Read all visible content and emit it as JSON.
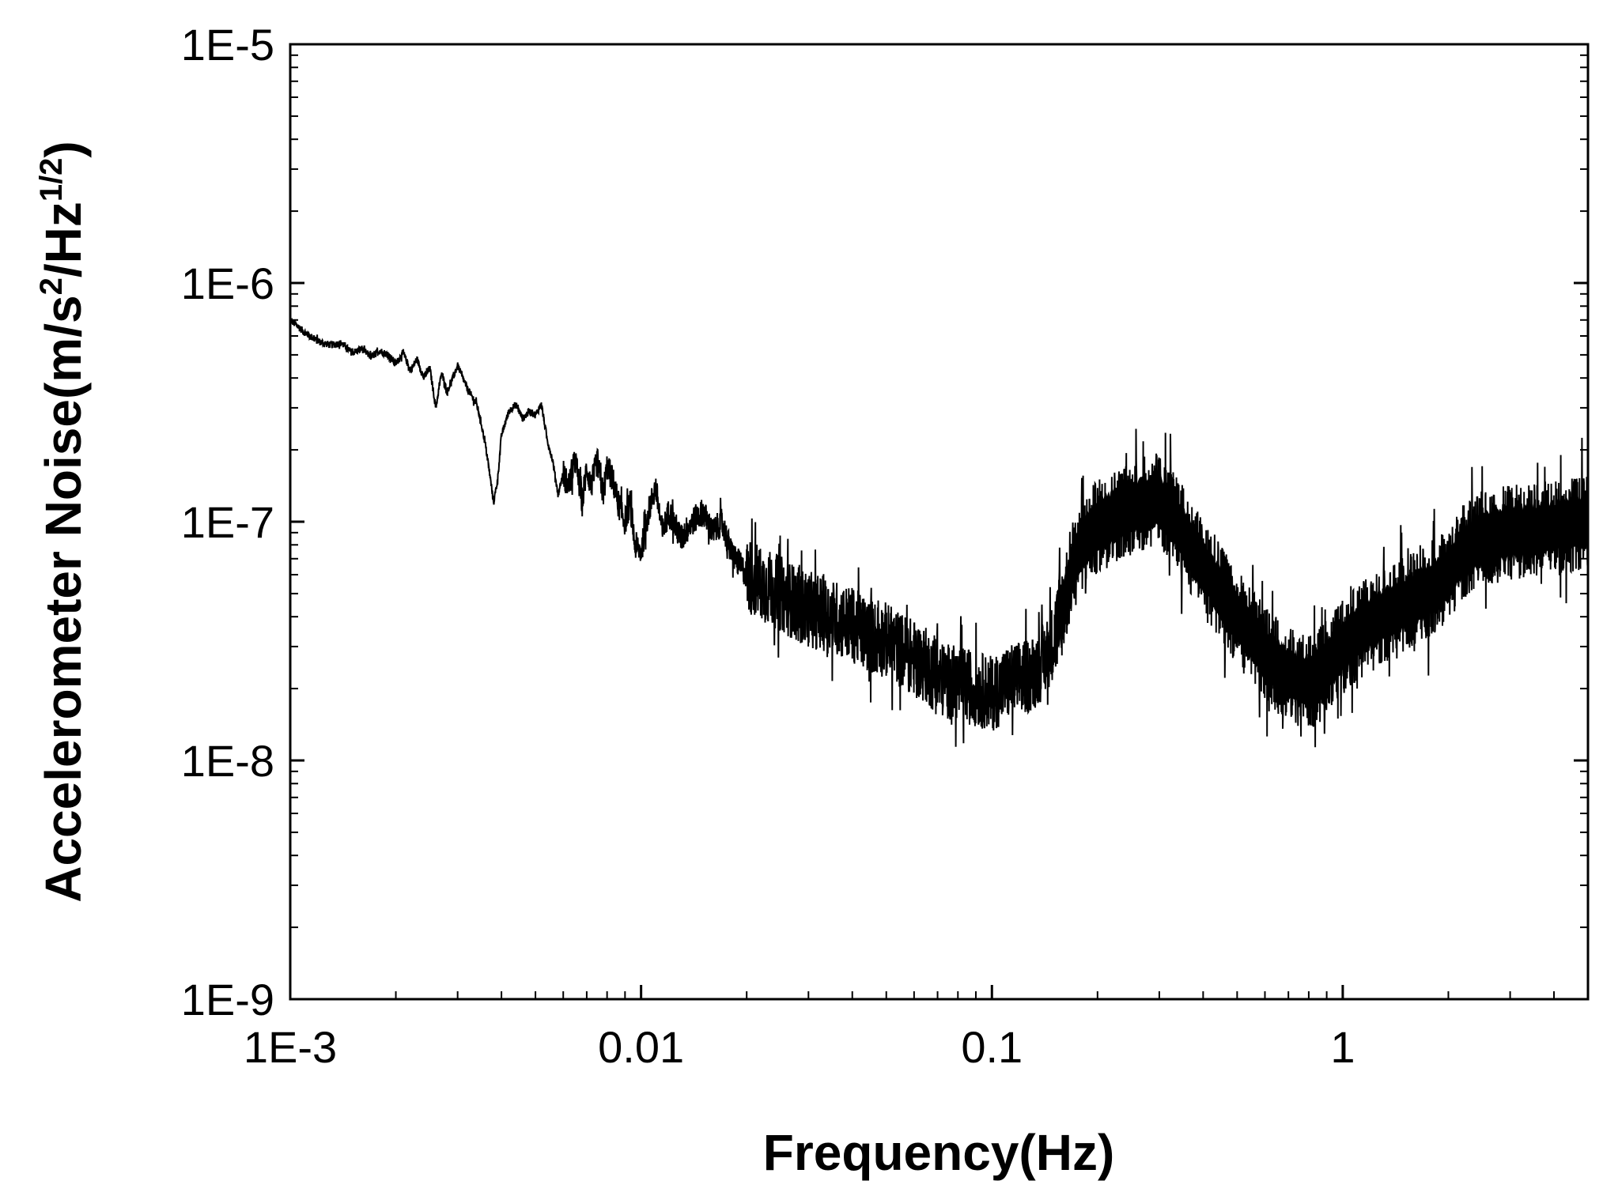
{
  "chart_data": {
    "type": "line",
    "title": "",
    "xlabel": "Frequency(Hz)",
    "ylabel": {
      "prefix": "Accelerometer Noise(m/s",
      "sup1": "2",
      "middle": "/Hz",
      "sup2": "1/2",
      "suffix": ")"
    },
    "xscale": "log",
    "yscale": "log",
    "xlim": [
      0.001,
      5
    ],
    "ylim": [
      1e-09,
      1e-05
    ],
    "x_ticks": [
      {
        "value": 0.001,
        "label": "1E-3"
      },
      {
        "value": 0.01,
        "label": "0.01"
      },
      {
        "value": 0.1,
        "label": "0.1"
      },
      {
        "value": 1,
        "label": "1"
      }
    ],
    "y_ticks": [
      {
        "value": 1e-09,
        "label": "1E-9"
      },
      {
        "value": 1e-08,
        "label": "1E-8"
      },
      {
        "value": 1e-07,
        "label": "1E-7"
      },
      {
        "value": 1e-06,
        "label": "1E-6"
      },
      {
        "value": 1e-05,
        "label": "1E-5"
      }
    ],
    "grid": false,
    "legend": "none",
    "line_color": "#000000",
    "series": [
      {
        "x": [
          0.001,
          0.0011,
          0.0012,
          0.0013,
          0.0014,
          0.0015,
          0.0016,
          0.0017,
          0.0018,
          0.0019,
          0.002,
          0.0021,
          0.0022,
          0.0023,
          0.0024,
          0.0025,
          0.0026,
          0.0027,
          0.0028,
          0.003,
          0.0032,
          0.0034,
          0.0035,
          0.0036,
          0.0037,
          0.0038,
          0.0039,
          0.004,
          0.0042,
          0.0044,
          0.0046,
          0.0048,
          0.005,
          0.0052,
          0.0054,
          0.0056,
          0.0058,
          0.006,
          0.0062,
          0.0065,
          0.0068,
          0.007,
          0.0072,
          0.0075,
          0.0078,
          0.008,
          0.0083,
          0.0086,
          0.009,
          0.0093,
          0.0096,
          0.01,
          0.0105,
          0.011,
          0.0115,
          0.012,
          0.013,
          0.014,
          0.015,
          0.016,
          0.017,
          0.018,
          0.02,
          0.022,
          0.025,
          0.028,
          0.03,
          0.035,
          0.04,
          0.045,
          0.05,
          0.055,
          0.06,
          0.065,
          0.07,
          0.08,
          0.09,
          0.1,
          0.11,
          0.12,
          0.13,
          0.14,
          0.15,
          0.16,
          0.17,
          0.18,
          0.2,
          0.22,
          0.25,
          0.28,
          0.3,
          0.32,
          0.35,
          0.4,
          0.45,
          0.5,
          0.55,
          0.6,
          0.65,
          0.7,
          0.75,
          0.8,
          0.85,
          0.9,
          1,
          1.2,
          1.5,
          1.8,
          2,
          2.2,
          2.5,
          3,
          3.5,
          4,
          4.5,
          5
        ],
        "values": [
          7e-07,
          6.2e-07,
          5.7e-07,
          5.5e-07,
          5.6e-07,
          5.1e-07,
          5.3e-07,
          4.9e-07,
          5.2e-07,
          5e-07,
          4.6e-07,
          5.1e-07,
          4.3e-07,
          4.8e-07,
          4e-07,
          4.4e-07,
          3e-07,
          4.2e-07,
          3.5e-07,
          4.5e-07,
          3.6e-07,
          3.1e-07,
          2.6e-07,
          2.1e-07,
          1.6e-07,
          1.2e-07,
          1.5e-07,
          2.3e-07,
          2.9e-07,
          3.1e-07,
          2.7e-07,
          2.9e-07,
          2.8e-07,
          3.1e-07,
          2.2e-07,
          1.8e-07,
          1.3e-07,
          1.6e-07,
          1.4e-07,
          1.8e-07,
          1.2e-07,
          1.7e-07,
          1.4e-07,
          1.8e-07,
          1.3e-07,
          1.7e-07,
          1.5e-07,
          1.2e-07,
          1e-07,
          1.2e-07,
          8e-08,
          7.5e-08,
          1.1e-07,
          1.4e-07,
          9e-08,
          1.1e-07,
          8.5e-08,
          1e-07,
          1.1e-07,
          9e-08,
          1e-07,
          7.5e-08,
          6e-08,
          5.5e-08,
          5e-08,
          4.5e-08,
          4.3e-08,
          4e-08,
          3.7e-08,
          3.3e-08,
          3.2e-08,
          2.9e-08,
          2.7e-08,
          2.5e-08,
          2.2e-08,
          2.1e-08,
          2e-08,
          1.9e-08,
          2.1e-08,
          2.2e-08,
          2.3e-08,
          2.6e-08,
          3.2e-08,
          4.5e-08,
          6.5e-08,
          8e-08,
          9.5e-08,
          1.05e-07,
          1.15e-07,
          1.2e-07,
          1.22e-07,
          1.1e-07,
          9e-08,
          6.5e-08,
          5e-08,
          4e-08,
          3.3e-08,
          2.8e-08,
          2.5e-08,
          2.3e-08,
          2.2e-08,
          2.1e-08,
          2.2e-08,
          2.5e-08,
          3e-08,
          3.8e-08,
          4.5e-08,
          5.3e-08,
          6e-08,
          7.5e-08,
          8.5e-08,
          9e-08,
          9.2e-08,
          9.5e-08,
          9.8e-08,
          1e-07
        ]
      }
    ]
  }
}
